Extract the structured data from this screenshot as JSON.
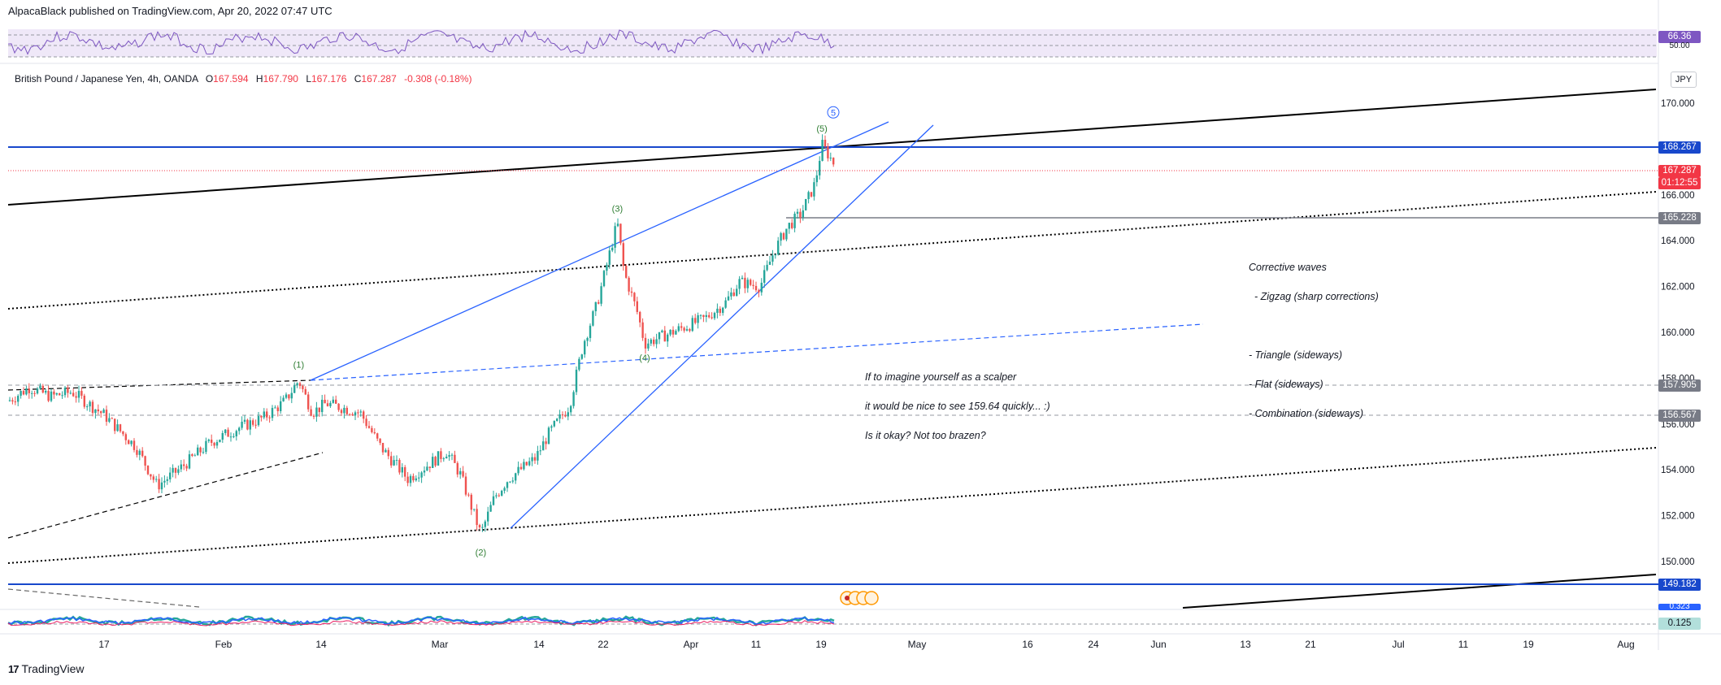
{
  "header": {
    "published": "AlpacaBlack published on TradingView.com, Apr 20, 2022 07:47 UTC"
  },
  "symbol": {
    "name": "British Pound / Japanese Yen, 4h, OANDA",
    "open_label": "O",
    "open": "167.594",
    "high_label": "H",
    "high": "167.790",
    "low_label": "L",
    "low": "167.176",
    "close_label": "C",
    "close": "167.287",
    "change": "-0.308 (-0.18%)"
  },
  "currency_button": "JPY",
  "rsi_panel": {
    "value_label": "66.36",
    "level_label": "50.00",
    "color": "#7e57c2"
  },
  "price_labels": {
    "blue_line": "168.267",
    "last_price": "167.287",
    "countdown": "01:12:55",
    "resistance": "165.228",
    "level_1": "157.905",
    "level_2": "156.567",
    "support": "149.182"
  },
  "macd_panel": {
    "value_label": "0.125",
    "top_label": "0.323"
  },
  "annotations": {
    "corrective": [
      "Corrective waves",
      "  - Zigzag (sharp corrections)",
      "",
      "- Triangle (sideways)",
      "- Flat (sideways)",
      "- Combination (sideways)"
    ],
    "scalper": [
      "If to imagine yourself as a scalper",
      "it would be nice to see 159.64 quickly... :)",
      "Is it okay? Not too brazen?"
    ]
  },
  "footer_brand": "TradingView",
  "chart_data": {
    "type": "candlestick",
    "title": "British Pound / Japanese Yen, 4h, OANDA",
    "timeframe": "4h",
    "y_axis": {
      "ticks": [
        150,
        152,
        154,
        156,
        158,
        160,
        162,
        164,
        166,
        168,
        170
      ],
      "ylim": [
        148.8,
        171.4
      ],
      "tick_labels": [
        "150.000",
        "152.000",
        "154.000",
        "156.000",
        "158.000",
        "160.000",
        "162.000",
        "164.000",
        "166.000",
        "168.000",
        "170.000"
      ]
    },
    "x_axis": {
      "ticks": [
        "17",
        "Feb",
        "14",
        "Mar",
        "14",
        "22",
        "Apr",
        "11",
        "19",
        "May",
        "16",
        "24",
        "Jun",
        "13",
        "21",
        "Jul",
        "11",
        "19",
        "Aug"
      ]
    },
    "price_path": [
      {
        "date": "Jan 12",
        "value": 157.0
      },
      {
        "date": "Jan 14",
        "value": 157.6
      },
      {
        "date": "Jan 16",
        "value": 157.2
      },
      {
        "date": "Jan 18",
        "value": 157.4
      },
      {
        "date": "Jan 21",
        "value": 156.4
      },
      {
        "date": "Jan 24",
        "value": 155.0
      },
      {
        "date": "Jan 26",
        "value": 153.3
      },
      {
        "date": "Jan 28",
        "value": 154.0
      },
      {
        "date": "Jan 31",
        "value": 155.2
      },
      {
        "date": "Feb 3",
        "value": 155.8
      },
      {
        "date": "Feb 7",
        "value": 156.3
      },
      {
        "date": "Feb 10",
        "value": 157.0
      },
      {
        "date": "Feb 12",
        "value": 157.9
      },
      {
        "date": "Feb 14",
        "value": 156.5
      },
      {
        "date": "Feb 16",
        "value": 156.9
      },
      {
        "date": "Feb 21",
        "value": 156.5
      },
      {
        "date": "Feb 24",
        "value": 155.0
      },
      {
        "date": "Feb 28",
        "value": 153.6
      },
      {
        "date": "Mar 2",
        "value": 154.8
      },
      {
        "date": "Mar 4",
        "value": 153.8
      },
      {
        "date": "Mar 7",
        "value": 151.2
      },
      {
        "date": "Mar 9",
        "value": 152.8
      },
      {
        "date": "Mar 11",
        "value": 153.6
      },
      {
        "date": "Mar 15",
        "value": 154.5
      },
      {
        "date": "Mar 17",
        "value": 155.6
      },
      {
        "date": "Mar 20",
        "value": 156.8
      },
      {
        "date": "Mar 22",
        "value": 159.5
      },
      {
        "date": "Mar 24",
        "value": 161.2
      },
      {
        "date": "Mar 27",
        "value": 164.8
      },
      {
        "date": "Mar 28",
        "value": 162.6
      },
      {
        "date": "Mar 30",
        "value": 160.8
      },
      {
        "date": "Mar 31",
        "value": 159.5
      },
      {
        "date": "Apr 3",
        "value": 160.6
      },
      {
        "date": "Apr 6",
        "value": 161.3
      },
      {
        "date": "Apr 8",
        "value": 162.2
      },
      {
        "date": "Apr 11",
        "value": 162.0
      },
      {
        "date": "Apr 13",
        "value": 163.5
      },
      {
        "date": "Apr 15",
        "value": 164.6
      },
      {
        "date": "Apr 17",
        "value": 165.2
      },
      {
        "date": "Apr 19",
        "value": 166.5
      },
      {
        "date": "Apr 20",
        "value": 168.2
      },
      {
        "date": "Apr 20 07:00",
        "value": 167.3
      }
    ],
    "wave_labels": [
      {
        "label": "(1)",
        "date": "Feb 12",
        "value": 158.6
      },
      {
        "label": "(2)",
        "date": "Mar 7",
        "value": 150.4
      },
      {
        "label": "(3)",
        "date": "Mar 27",
        "value": 165.4
      },
      {
        "label": "(4)",
        "date": "Mar 31",
        "value": 158.9
      },
      {
        "label": "(5)",
        "date": "Apr 20",
        "value": 168.9
      },
      {
        "label": "5",
        "date": "Apr 20",
        "value": 169.6
      }
    ],
    "horizontal_levels": [
      168.267,
      165.228,
      157.905,
      156.567,
      149.182
    ]
  }
}
